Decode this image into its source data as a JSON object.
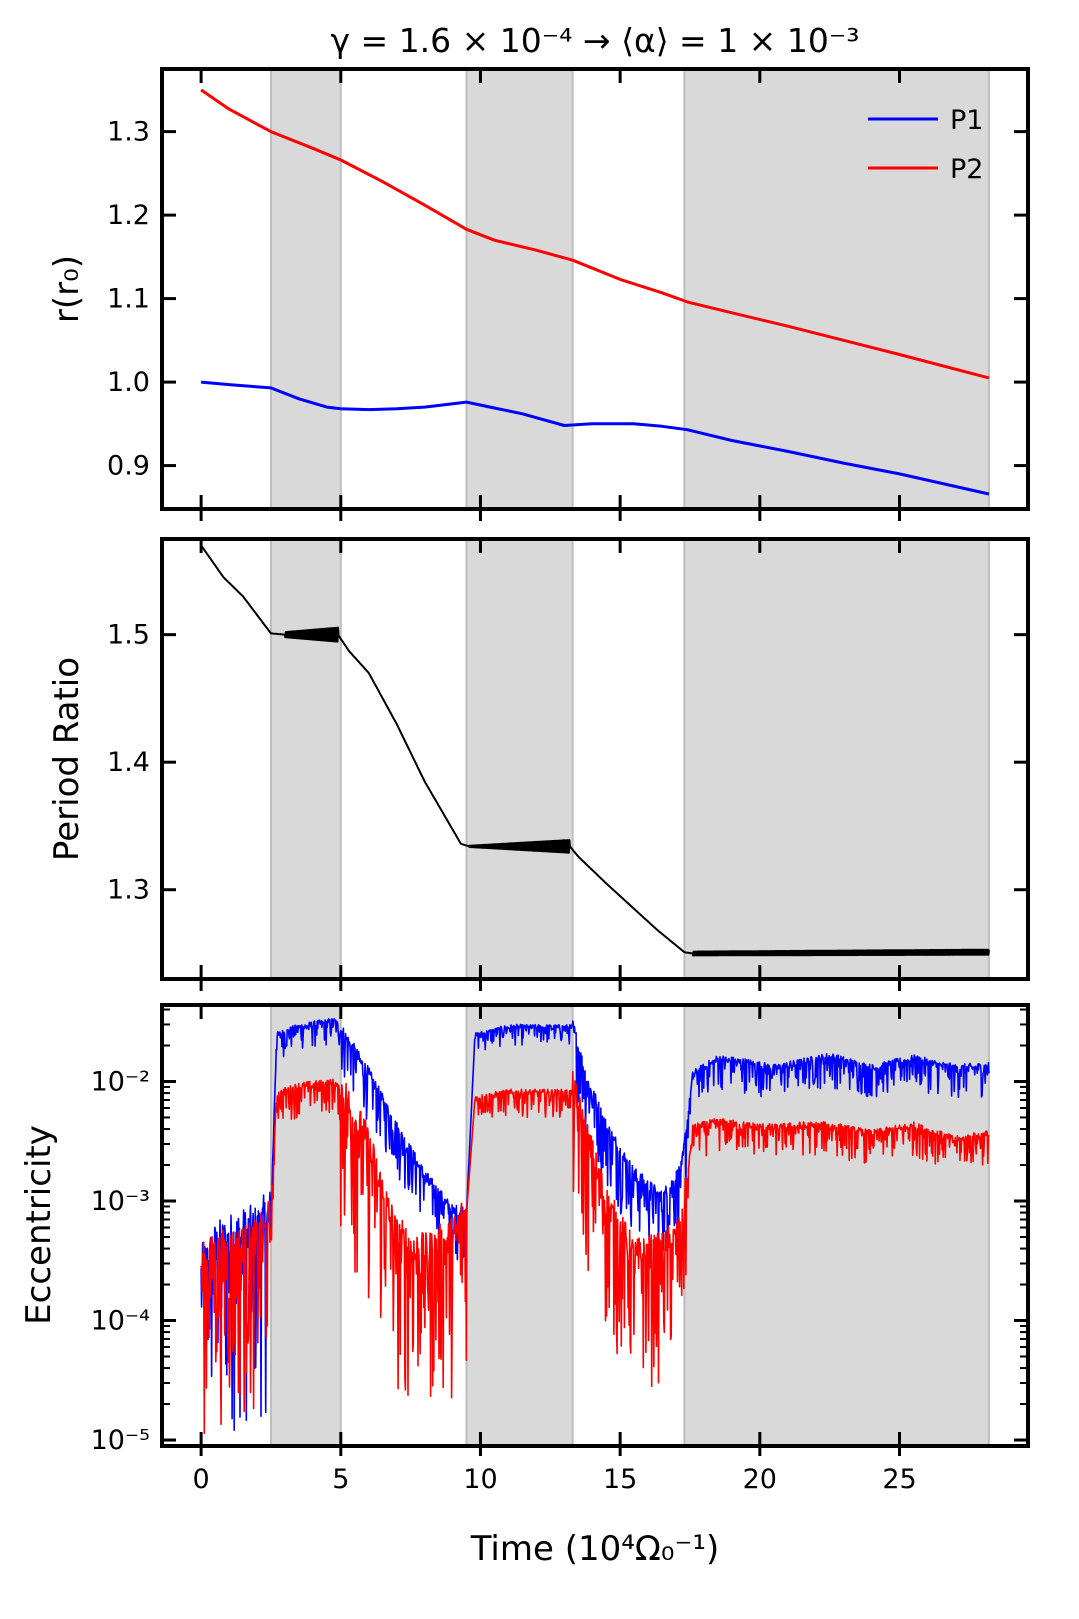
{
  "title": "γ = 1.6 × 10⁻⁴ → ⟨α⟩ = 1 × 10⁻³",
  "chart_data": [
    {
      "type": "line",
      "panel": "top",
      "ylabel": "r(r₀)",
      "xlim": [
        -1.4,
        29.6
      ],
      "ylim": [
        0.848,
        1.375
      ],
      "yticks": [
        {
          "v": 0.9,
          "label": "0.9"
        },
        {
          "v": 1.0,
          "label": "1.0"
        },
        {
          "v": 1.1,
          "label": "1.1"
        },
        {
          "v": 1.2,
          "label": "1.2"
        },
        {
          "v": 1.3,
          "label": "1.3"
        }
      ],
      "legend": [
        "P1",
        "P2"
      ],
      "legend_position": "top-right",
      "series": [
        {
          "name": "P1",
          "color": "#0000ff",
          "x": [
            0,
            1,
            2.5,
            3.5,
            4.5,
            5,
            6,
            7,
            8,
            9.5,
            10.5,
            11.5,
            13,
            14,
            15.5,
            16.5,
            17.4,
            19,
            21,
            23,
            25,
            28.2
          ],
          "y": [
            1.0,
            0.997,
            0.993,
            0.98,
            0.97,
            0.968,
            0.967,
            0.968,
            0.97,
            0.976,
            0.969,
            0.962,
            0.948,
            0.95,
            0.95,
            0.947,
            0.943,
            0.93,
            0.917,
            0.903,
            0.89,
            0.866
          ]
        },
        {
          "name": "P2",
          "color": "#ff0000",
          "x": [
            0,
            1,
            2.5,
            4,
            5,
            6.5,
            8,
            9.5,
            10.5,
            12,
            13.3,
            15,
            16.5,
            17.4,
            19,
            21,
            23,
            25,
            28.2
          ],
          "y": [
            1.35,
            1.327,
            1.3,
            1.28,
            1.266,
            1.24,
            1.212,
            1.183,
            1.17,
            1.158,
            1.146,
            1.123,
            1.107,
            1.096,
            1.083,
            1.067,
            1.05,
            1.033,
            1.005
          ]
        }
      ]
    },
    {
      "type": "line",
      "panel": "middle",
      "ylabel": "Period Ratio",
      "xlim": [
        -1.4,
        29.6
      ],
      "ylim": [
        1.23,
        1.575
      ],
      "yticks": [
        {
          "v": 1.3,
          "label": "1.3"
        },
        {
          "v": 1.4,
          "label": "1.4"
        },
        {
          "v": 1.5,
          "label": "1.5"
        }
      ],
      "series": [
        {
          "name": "period-ratio",
          "color": "#000000",
          "x": [
            0,
            0.8,
            1.5,
            2.5,
            3.0,
            4.9,
            5.3,
            6.0,
            7.0,
            8.0,
            9.3,
            9.6,
            13.2,
            13.5,
            14.5,
            15.5,
            16.3,
            17.3,
            17.6,
            28.2
          ],
          "y": [
            1.57,
            1.545,
            1.53,
            1.501,
            1.5,
            1.5,
            1.487,
            1.47,
            1.43,
            1.385,
            1.336,
            1.334,
            1.334,
            1.326,
            1.305,
            1.285,
            1.269,
            1.251,
            1.25,
            1.251
          ],
          "oscillations": [
            [
              3.0,
              4.9,
              0.002,
              0.0055
            ],
            [
              9.6,
              13.2,
              0.0005,
              0.005
            ],
            [
              17.6,
              28.2,
              0.0015,
              0.002
            ]
          ]
        }
      ]
    },
    {
      "type": "line",
      "panel": "bottom",
      "ylabel": "Eccentricity",
      "xlabel": "Time (10⁴Ω₀⁻¹)",
      "yscale": "log",
      "xlim": [
        -1.4,
        29.6
      ],
      "ylim_log10": [
        -5.05,
        -1.36
      ],
      "yticks": [
        {
          "exp": -5,
          "label": "10⁻⁵"
        },
        {
          "exp": -4,
          "label": "10⁻⁴"
        },
        {
          "exp": -3,
          "label": "10⁻³"
        },
        {
          "exp": -2,
          "label": "10⁻²"
        }
      ],
      "xticks": [
        {
          "v": 0,
          "label": "0"
        },
        {
          "v": 5,
          "label": "5"
        },
        {
          "v": 10,
          "label": "10"
        },
        {
          "v": 15,
          "label": "15"
        },
        {
          "v": 20,
          "label": "20"
        },
        {
          "v": 25,
          "label": "25"
        }
      ],
      "series": [
        {
          "name": "P1",
          "color": "#0000ff",
          "x": [
            0,
            0.5,
            1.2,
            2.0,
            2.5,
            2.7,
            3.5,
            4.8,
            5.2,
            6.0,
            7.0,
            8.0,
            9.0,
            9.5,
            9.8,
            11.0,
            13.3,
            13.8,
            14.5,
            15.5,
            16.5,
            17.2,
            17.6,
            18.5,
            19.5,
            20.5,
            21.5,
            22.5,
            24.0,
            25.5,
            27.0,
            28.2
          ],
          "y": [
            -3.65,
            -3.45,
            -3.35,
            -3.3,
            -3.15,
            -1.62,
            -1.55,
            -1.5,
            -1.65,
            -1.95,
            -2.4,
            -2.8,
            -3.1,
            -3.1,
            -1.62,
            -1.55,
            -1.55,
            -2.0,
            -2.4,
            -2.8,
            -3.0,
            -2.75,
            -1.95,
            -1.82,
            -1.85,
            -1.9,
            -1.85,
            -1.8,
            -1.9,
            -1.82,
            -1.9,
            -1.88
          ],
          "noise": [
            [
              0,
              2.5,
              1.6
            ],
            [
              2.5,
              5.0,
              0.2
            ],
            [
              5.0,
              9.5,
              0.4
            ],
            [
              9.8,
              13.3,
              0.15
            ],
            [
              13.3,
              17.4,
              0.5
            ],
            [
              17.4,
              28.2,
              0.25
            ]
          ]
        },
        {
          "name": "P2",
          "color": "#ff0000",
          "x": [
            0,
            0.5,
            1.2,
            2.0,
            2.5,
            2.7,
            3.5,
            4.8,
            5.2,
            6.0,
            7.0,
            8.0,
            9.0,
            9.5,
            9.8,
            11.0,
            13.3,
            13.8,
            14.5,
            15.5,
            16.5,
            17.2,
            17.6,
            18.5,
            19.5,
            20.5,
            21.5,
            22.5,
            24.0,
            25.5,
            27.0,
            28.2
          ],
          "y": [
            -3.6,
            -3.5,
            -3.45,
            -3.4,
            -3.2,
            -2.12,
            -2.05,
            -2.02,
            -2.2,
            -2.6,
            -3.35,
            -3.5,
            -3.35,
            -3.1,
            -2.15,
            -2.1,
            -2.1,
            -2.5,
            -3.05,
            -3.5,
            -3.45,
            -3.3,
            -2.4,
            -2.35,
            -2.38,
            -2.4,
            -2.38,
            -2.38,
            -2.45,
            -2.38,
            -2.5,
            -2.45
          ],
          "noise": [
            [
              0,
              2.5,
              1.4
            ],
            [
              2.5,
              5.0,
              0.25
            ],
            [
              5.0,
              9.5,
              1.3
            ],
            [
              9.8,
              13.3,
              0.2
            ],
            [
              13.3,
              17.4,
              1.1
            ],
            [
              17.4,
              28.2,
              0.25
            ]
          ]
        }
      ]
    }
  ],
  "shaded_regions": [
    [
      2.5,
      5.0
    ],
    [
      9.5,
      13.3
    ],
    [
      17.3,
      28.2
    ]
  ]
}
